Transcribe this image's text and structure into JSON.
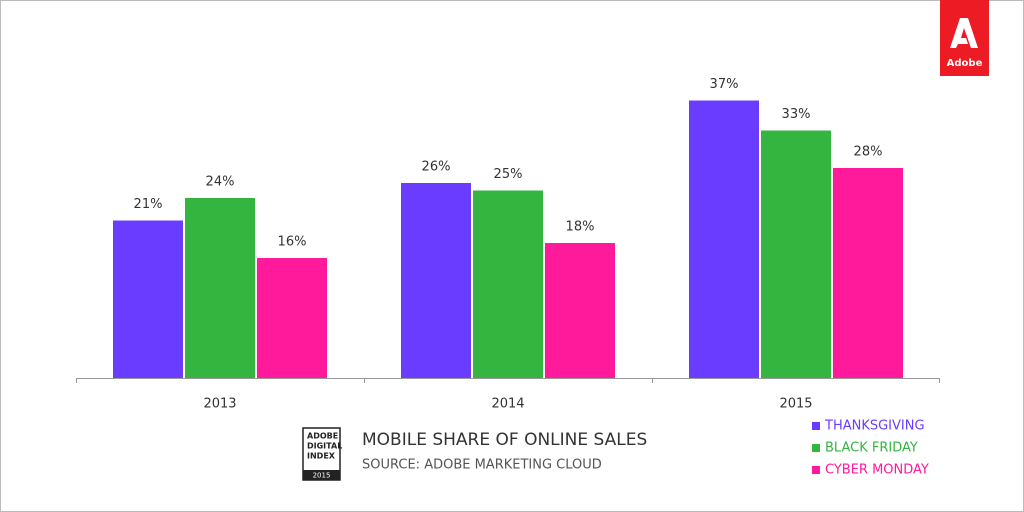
{
  "chart_data": {
    "type": "bar",
    "title": "MOBILE SHARE OF ONLINE SALES",
    "subtitle": "SOURCE: ADOBE MARKETING CLOUD",
    "badge": {
      "lines": [
        "ADOBE",
        "DIGITAL",
        "INDEX"
      ],
      "year": "2015"
    },
    "logo": "Adobe",
    "categories": [
      "2013",
      "2014",
      "2015"
    ],
    "series": [
      {
        "name": "THANKSGIVING",
        "color": "#6a3cff",
        "values": [
          21,
          26,
          37
        ],
        "value_labels": [
          "21%",
          "26%",
          "37%"
        ]
      },
      {
        "name": "BLACK FRIDAY",
        "color": "#33b540",
        "values": [
          24,
          25,
          33
        ],
        "value_labels": [
          "24%",
          "25%",
          "33%"
        ]
      },
      {
        "name": "CYBER MONDAY",
        "color": "#ff1a9c",
        "values": [
          16,
          18,
          28
        ],
        "value_labels": [
          "16%",
          "18%",
          "28%"
        ]
      }
    ]
  }
}
